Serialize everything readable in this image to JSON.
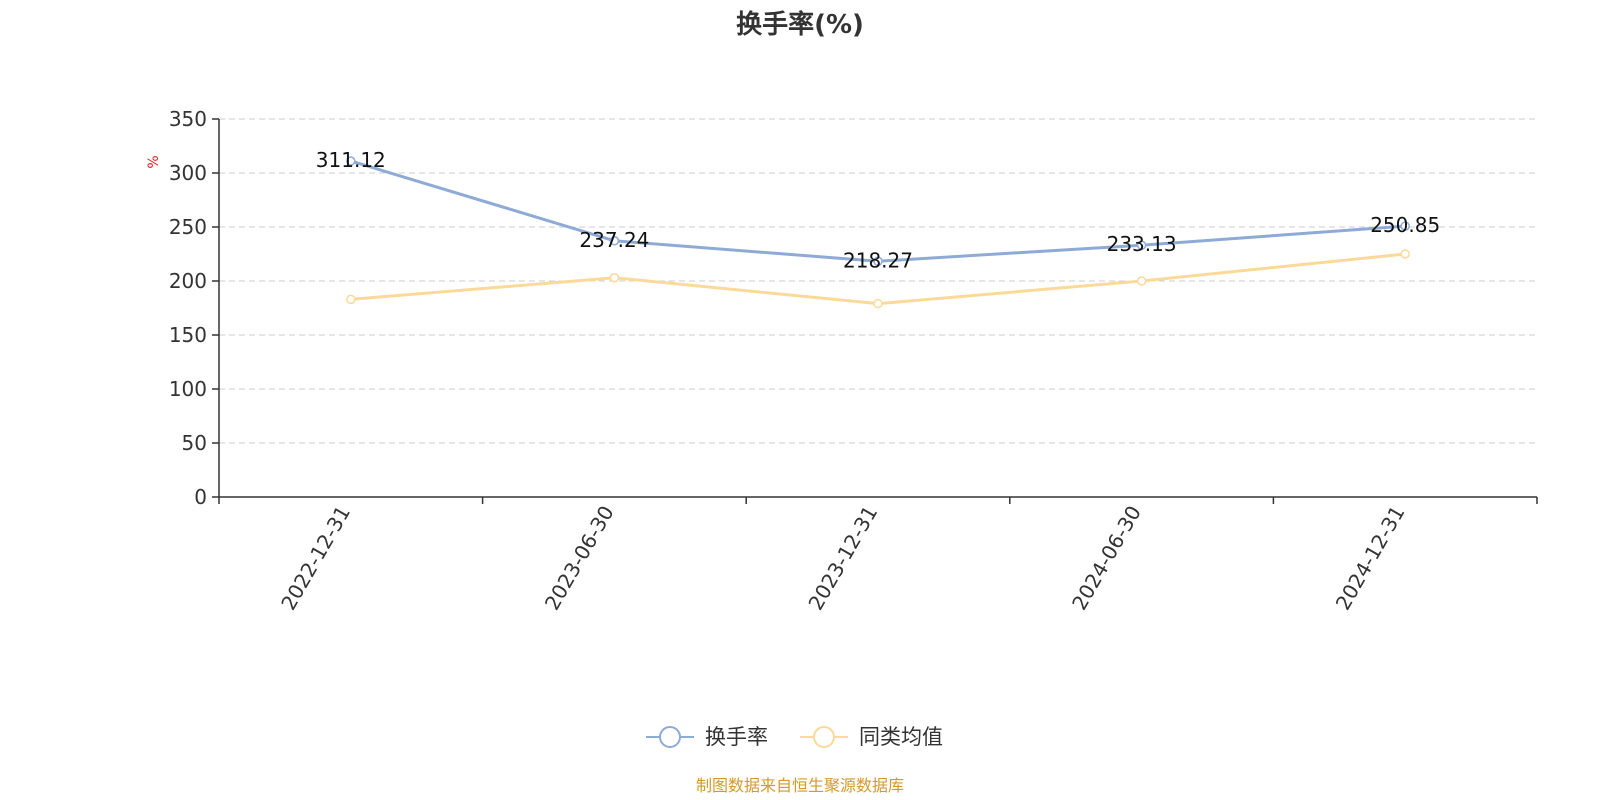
{
  "chart_data": {
    "type": "line",
    "title": "换手率(%)",
    "ylabel": "%",
    "xlabel": "",
    "categories": [
      "2022-12-31",
      "2023-06-30",
      "2023-12-31",
      "2024-06-30",
      "2024-12-31"
    ],
    "ylim": [
      0,
      350
    ],
    "yticks": [
      0,
      50,
      100,
      150,
      200,
      250,
      300,
      350
    ],
    "grid": true,
    "legend_position": "bottom-center",
    "series": [
      {
        "name": "换手率",
        "values": [
          311.12,
          237.24,
          218.27,
          233.13,
          250.85
        ],
        "labels": [
          "311.12",
          "237.24",
          "218.27",
          "233.13",
          "250.85"
        ],
        "color": "#8eaad6",
        "show_labels": true
      },
      {
        "name": "同类均值",
        "values": [
          183,
          203,
          179,
          200,
          225
        ],
        "color": "#fbd999",
        "show_labels": false
      }
    ]
  },
  "footer": {
    "source": "制图数据来自恒生聚源数据库",
    "source_color": "#d39a2a"
  }
}
